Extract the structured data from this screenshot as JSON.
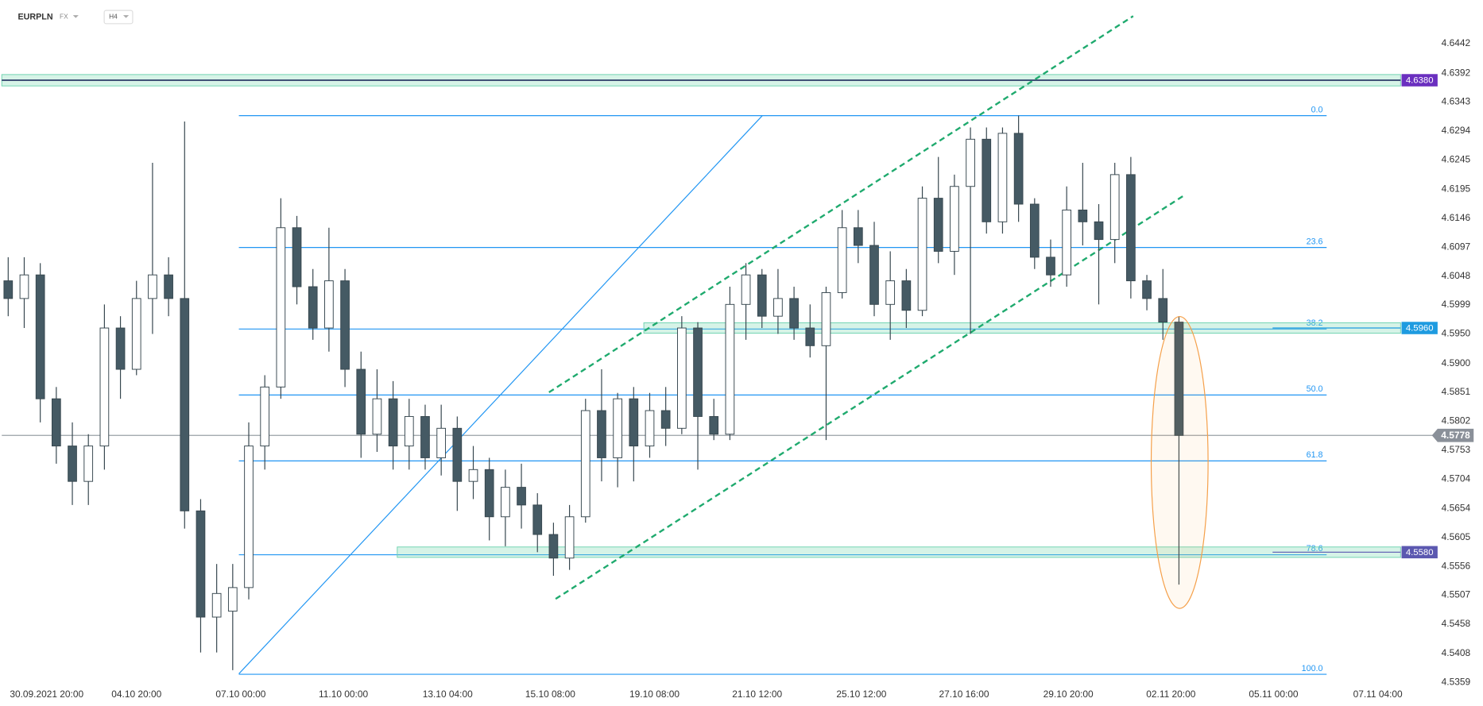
{
  "header": {
    "symbol": "EURPLN",
    "market": "FX",
    "timeframe": "H4"
  },
  "chart_data": {
    "type": "candlestick",
    "ylim": [
      4.5353,
      4.6516
    ],
    "yticks": [
      4.6442,
      4.6392,
      4.6343,
      4.6294,
      4.6245,
      4.6195,
      4.6146,
      4.6097,
      4.6048,
      4.5999,
      {
        "value": 4.595,
        "label": "4.5950"
      },
      {
        "value": 4.59,
        "label": "4.5900"
      },
      4.5851,
      4.5802,
      4.5753,
      4.5704,
      4.5654,
      4.5605,
      4.5556,
      4.5507,
      4.5458,
      4.5408,
      4.5359
    ],
    "xlim": [
      -0.4,
      88.3
    ],
    "xticks": [
      {
        "value": 2.4,
        "label": "30.09.2021  20:00"
      },
      {
        "value": 8.0,
        "label": "04.10 20:00"
      },
      {
        "value": 14.5,
        "label": "07.10 00:00"
      },
      {
        "value": 20.9,
        "label": "11.10 00:00"
      },
      {
        "value": 27.4,
        "label": "13.10 04:00"
      },
      {
        "value": 33.8,
        "label": "15.10 08:00"
      },
      {
        "value": 40.3,
        "label": "19.10 08:00"
      },
      {
        "value": 46.7,
        "label": "21.10 12:00"
      },
      {
        "value": 53.2,
        "label": "25.10 12:00"
      },
      {
        "value": 59.6,
        "label": "27.10 16:00"
      },
      {
        "value": 66.1,
        "label": "29.10 20:00"
      },
      {
        "value": 72.5,
        "label": "02.11 20:00"
      },
      {
        "value": 78.9,
        "label": "05.11 00:00"
      },
      {
        "value": 85.4,
        "label": "07.11 04:00"
      }
    ],
    "up_color": "#ffffff",
    "down_color": "#455a64",
    "ohlc": [
      [
        4.604,
        4.608,
        4.598,
        4.601
      ],
      [
        4.601,
        4.608,
        4.596,
        4.605
      ],
      [
        4.605,
        4.607,
        4.58,
        4.584
      ],
      [
        4.584,
        4.586,
        4.573,
        4.576
      ],
      [
        4.576,
        4.58,
        4.566,
        4.57
      ],
      [
        4.57,
        4.578,
        4.566,
        4.576
      ],
      [
        4.576,
        4.6,
        4.572,
        4.596
      ],
      [
        4.596,
        4.598,
        4.584,
        4.589
      ],
      [
        4.589,
        4.604,
        4.588,
        4.601
      ],
      [
        4.601,
        4.624,
        4.595,
        4.605
      ],
      [
        4.605,
        4.608,
        4.598,
        4.601
      ],
      [
        4.601,
        4.631,
        4.562,
        4.565
      ],
      [
        4.565,
        4.567,
        4.541,
        4.547
      ],
      [
        4.547,
        4.556,
        4.541,
        4.551
      ],
      [
        4.548,
        4.556,
        4.538,
        4.552
      ],
      [
        4.552,
        4.58,
        4.55,
        4.576
      ],
      [
        4.576,
        4.588,
        4.572,
        4.586
      ],
      [
        4.586,
        4.618,
        4.584,
        4.613
      ],
      [
        4.613,
        4.615,
        4.6,
        4.603
      ],
      [
        4.603,
        4.606,
        4.594,
        4.596
      ],
      [
        4.596,
        4.613,
        4.592,
        4.604
      ],
      [
        4.604,
        4.606,
        4.586,
        4.589
      ],
      [
        4.589,
        4.592,
        4.574,
        4.578
      ],
      [
        4.578,
        4.589,
        4.575,
        4.584
      ],
      [
        4.584,
        4.587,
        4.572,
        4.576
      ],
      [
        4.576,
        4.584,
        4.572,
        4.581
      ],
      [
        4.581,
        4.583,
        4.572,
        4.574
      ],
      [
        4.574,
        4.583,
        4.571,
        4.579
      ],
      [
        4.579,
        4.581,
        4.565,
        4.57
      ],
      [
        4.57,
        4.576,
        4.567,
        4.572
      ],
      [
        4.572,
        4.574,
        4.56,
        4.564
      ],
      [
        4.564,
        4.572,
        4.559,
        4.569
      ],
      [
        4.569,
        4.573,
        4.562,
        4.566
      ],
      [
        4.566,
        4.568,
        4.558,
        4.561
      ],
      [
        4.561,
        4.563,
        4.554,
        4.557
      ],
      [
        4.557,
        4.566,
        4.555,
        4.564
      ],
      [
        4.564,
        4.584,
        4.563,
        4.582
      ],
      [
        4.582,
        4.589,
        4.57,
        4.574
      ],
      [
        4.574,
        4.585,
        4.569,
        4.584
      ],
      [
        4.584,
        4.586,
        4.57,
        4.576
      ],
      [
        4.576,
        4.585,
        4.574,
        4.582
      ],
      [
        4.582,
        4.586,
        4.576,
        4.579
      ],
      [
        4.579,
        4.598,
        4.578,
        4.596
      ],
      [
        4.596,
        4.597,
        4.572,
        4.581
      ],
      [
        4.581,
        4.584,
        4.577,
        4.578
      ],
      [
        4.578,
        4.603,
        4.577,
        4.6
      ],
      [
        4.6,
        4.607,
        4.594,
        4.605
      ],
      [
        4.605,
        4.606,
        4.596,
        4.598
      ],
      [
        4.598,
        4.606,
        4.595,
        4.601
      ],
      [
        4.601,
        4.603,
        4.594,
        4.596
      ],
      [
        4.596,
        4.6,
        4.591,
        4.593
      ],
      [
        4.593,
        4.603,
        4.577,
        4.602
      ],
      [
        4.602,
        4.616,
        4.601,
        4.613
      ],
      [
        4.613,
        4.616,
        4.607,
        4.61
      ],
      [
        4.61,
        4.614,
        4.598,
        4.6
      ],
      [
        4.6,
        4.609,
        4.594,
        4.604
      ],
      [
        4.604,
        4.606,
        4.596,
        4.599
      ],
      [
        4.599,
        4.62,
        4.598,
        4.618
      ],
      [
        4.618,
        4.625,
        4.607,
        4.609
      ],
      [
        4.609,
        4.622,
        4.605,
        4.62
      ],
      [
        4.62,
        4.63,
        4.595,
        4.628
      ],
      [
        4.628,
        4.63,
        4.612,
        4.614
      ],
      [
        4.614,
        4.63,
        4.612,
        4.629
      ],
      [
        4.629,
        4.632,
        4.614,
        4.617
      ],
      [
        4.617,
        4.618,
        4.606,
        4.608
      ],
      [
        4.608,
        4.611,
        4.603,
        4.605
      ],
      [
        4.605,
        4.62,
        4.603,
        4.616
      ],
      [
        4.616,
        4.624,
        4.61,
        4.614
      ],
      [
        4.614,
        4.617,
        4.6,
        4.611
      ],
      [
        4.611,
        4.624,
        4.607,
        4.622
      ],
      [
        4.622,
        4.625,
        4.601,
        4.604
      ],
      [
        4.604,
        4.605,
        4.599,
        4.601
      ],
      [
        4.601,
        4.606,
        4.594,
        4.597
      ],
      [
        4.597,
        4.598,
        4.5525,
        4.5778
      ]
    ],
    "fibonacci": {
      "high": 4.632,
      "low": 4.5373,
      "color": "#2196f3",
      "levels": [
        {
          "value": 0,
          "label": "0.0"
        },
        {
          "value": 23.6,
          "label": "23.6"
        },
        {
          "value": 38.2,
          "label": "38.2"
        },
        {
          "value": 50,
          "label": "50.0"
        },
        {
          "value": 61.8,
          "label": "61.8"
        },
        {
          "value": 78.6,
          "label": "78.6"
        },
        {
          "value": 100,
          "label": "100.0"
        }
      ]
    },
    "levels": [
      {
        "value": 4.638,
        "label": "4.6380",
        "color": "#6a2fbf"
      },
      {
        "value": 4.596,
        "label": "4.5960",
        "color": "#1e9be0"
      },
      {
        "value": 4.558,
        "label": "4.5580",
        "color": "#5b58b0"
      },
      {
        "value": 4.5778,
        "label": "4.5778",
        "color": "#8a9099"
      }
    ]
  }
}
